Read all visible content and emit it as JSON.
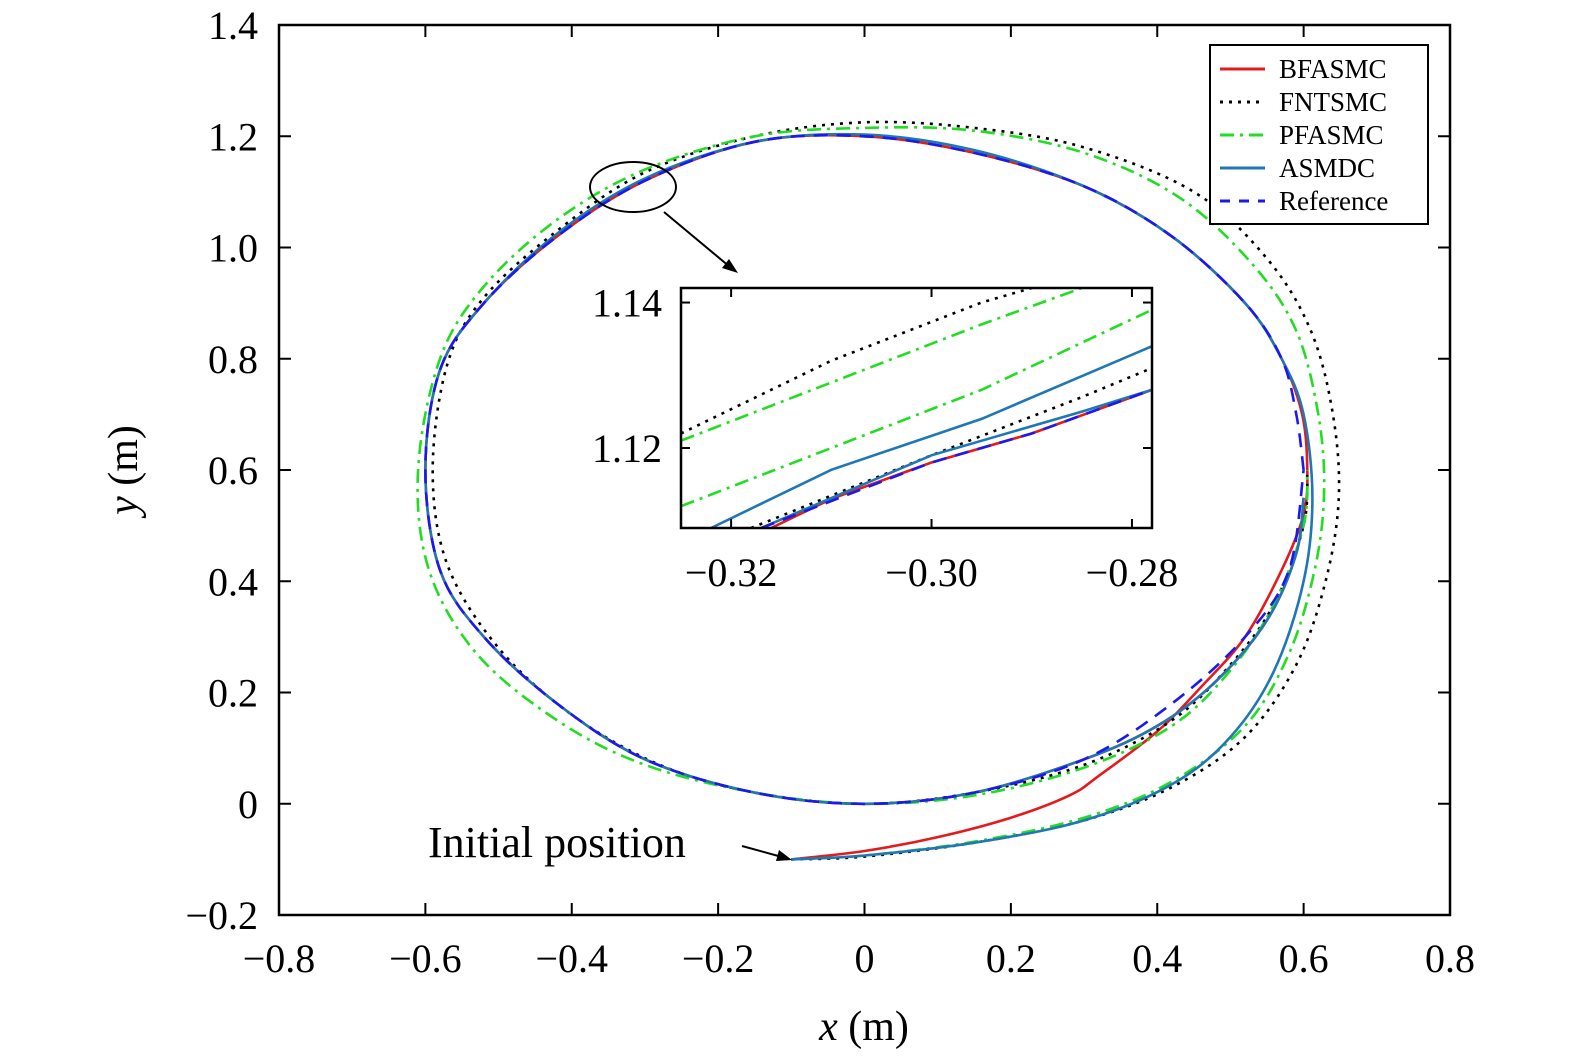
{
  "chart_data": {
    "type": "line",
    "xlabel": {
      "var": "x",
      "unit": " (m)"
    },
    "ylabel": {
      "var": "y",
      "unit": " (m)"
    },
    "xlim": [
      -0.8,
      0.8
    ],
    "ylim": [
      -0.2,
      1.4
    ],
    "xticks": [
      -0.8,
      -0.6,
      -0.4,
      -0.2,
      0,
      0.2,
      0.4,
      0.6,
      0.8
    ],
    "yticks": [
      -0.2,
      0,
      0.2,
      0.4,
      0.6,
      0.8,
      1.0,
      1.2,
      1.4
    ],
    "xtick_labels": [
      "−0.8",
      "−0.6",
      "−0.4",
      "−0.2",
      "0",
      "0.2",
      "0.4",
      "0.6",
      "0.8"
    ],
    "ytick_labels": [
      "−0.2",
      "0",
      "0.2",
      "0.4",
      "0.6",
      "0.8",
      "1.0",
      "1.2",
      "1.4"
    ],
    "legend_position": "top-right",
    "series": [
      {
        "name": "BFASMC",
        "color": "#e41a1c",
        "style": "solid",
        "points": [
          [
            -0.1,
            -0.1
          ],
          [
            0.0,
            -0.085
          ],
          [
            0.1,
            -0.06
          ],
          [
            0.2,
            -0.025
          ],
          [
            0.28,
            0.015
          ],
          [
            0.32,
            0.05
          ],
          [
            0.4,
            0.13
          ],
          [
            0.46,
            0.21
          ],
          [
            0.52,
            0.3
          ],
          [
            0.57,
            0.42
          ],
          [
            0.6,
            0.52
          ],
          [
            0.605,
            0.6
          ],
          [
            0.598,
            0.7
          ],
          [
            0.57,
            0.8
          ],
          [
            0.52,
            0.9
          ],
          [
            0.42,
            1.02
          ],
          [
            0.3,
            1.11
          ],
          [
            0.15,
            1.17
          ],
          [
            0.0,
            1.2
          ],
          [
            -0.15,
            1.19
          ],
          [
            -0.3,
            1.12
          ],
          [
            -0.42,
            1.02
          ],
          [
            -0.52,
            0.9
          ],
          [
            -0.58,
            0.78
          ],
          [
            -0.6,
            0.6
          ],
          [
            -0.58,
            0.42
          ],
          [
            -0.52,
            0.3
          ],
          [
            -0.42,
            0.18
          ],
          [
            -0.3,
            0.08
          ],
          [
            -0.15,
            0.02
          ],
          [
            0.0,
            0.0
          ],
          [
            0.15,
            0.02
          ],
          [
            0.3,
            0.08
          ],
          [
            0.4,
            0.14
          ],
          [
            0.48,
            0.22
          ],
          [
            0.55,
            0.33
          ],
          [
            0.59,
            0.45
          ],
          [
            0.6,
            0.55
          ]
        ]
      },
      {
        "name": "FNTSMC",
        "color": "#000000",
        "style": "dotted",
        "points": [
          [
            -0.1,
            -0.1
          ],
          [
            0.0,
            -0.095
          ],
          [
            0.15,
            -0.07
          ],
          [
            0.3,
            -0.03
          ],
          [
            0.42,
            0.03
          ],
          [
            0.52,
            0.12
          ],
          [
            0.59,
            0.25
          ],
          [
            0.63,
            0.4
          ],
          [
            0.648,
            0.55
          ],
          [
            0.64,
            0.7
          ],
          [
            0.61,
            0.85
          ],
          [
            0.55,
            0.98
          ],
          [
            0.45,
            1.1
          ],
          [
            0.3,
            1.18
          ],
          [
            0.15,
            1.215
          ],
          [
            0.0,
            1.225
          ],
          [
            -0.15,
            1.2
          ],
          [
            -0.3,
            1.135
          ],
          [
            -0.42,
            1.03
          ],
          [
            -0.52,
            0.91
          ],
          [
            -0.57,
            0.79
          ],
          [
            -0.59,
            0.6
          ],
          [
            -0.57,
            0.43
          ],
          [
            -0.5,
            0.28
          ],
          [
            -0.4,
            0.16
          ],
          [
            -0.28,
            0.07
          ],
          [
            -0.15,
            0.02
          ],
          [
            0.0,
            0.0
          ],
          [
            0.15,
            0.02
          ],
          [
            0.3,
            0.07
          ],
          [
            0.42,
            0.15
          ],
          [
            0.5,
            0.25
          ],
          [
            0.56,
            0.36
          ],
          [
            0.6,
            0.5
          ],
          [
            0.605,
            0.6
          ]
        ]
      },
      {
        "name": "PFASMC",
        "color": "#22dd22",
        "style": "dashdot",
        "points": [
          [
            -0.1,
            -0.1
          ],
          [
            0.0,
            -0.093
          ],
          [
            0.15,
            -0.068
          ],
          [
            0.3,
            -0.025
          ],
          [
            0.42,
            0.04
          ],
          [
            0.52,
            0.14
          ],
          [
            0.58,
            0.27
          ],
          [
            0.615,
            0.42
          ],
          [
            0.628,
            0.56
          ],
          [
            0.62,
            0.7
          ],
          [
            0.59,
            0.85
          ],
          [
            0.53,
            0.97
          ],
          [
            0.43,
            1.09
          ],
          [
            0.3,
            1.17
          ],
          [
            0.15,
            1.21
          ],
          [
            0.0,
            1.215
          ],
          [
            -0.15,
            1.2
          ],
          [
            -0.3,
            1.14
          ],
          [
            -0.42,
            1.05
          ],
          [
            -0.52,
            0.93
          ],
          [
            -0.58,
            0.8
          ],
          [
            -0.61,
            0.6
          ],
          [
            -0.595,
            0.42
          ],
          [
            -0.53,
            0.27
          ],
          [
            -0.42,
            0.15
          ],
          [
            -0.3,
            0.07
          ],
          [
            -0.15,
            0.02
          ],
          [
            0.0,
            0.0
          ],
          [
            0.15,
            0.015
          ],
          [
            0.3,
            0.065
          ],
          [
            0.42,
            0.14
          ],
          [
            0.5,
            0.24
          ],
          [
            0.56,
            0.36
          ],
          [
            0.6,
            0.5
          ],
          [
            0.605,
            0.6
          ]
        ]
      },
      {
        "name": "ASMDC",
        "color": "#1f77b4",
        "style": "solid",
        "points": [
          [
            -0.1,
            -0.1
          ],
          [
            0.0,
            -0.093
          ],
          [
            0.15,
            -0.07
          ],
          [
            0.3,
            -0.03
          ],
          [
            0.42,
            0.035
          ],
          [
            0.5,
            0.12
          ],
          [
            0.56,
            0.24
          ],
          [
            0.6,
            0.4
          ],
          [
            0.612,
            0.55
          ],
          [
            0.6,
            0.7
          ],
          [
            0.57,
            0.8
          ],
          [
            0.52,
            0.9
          ],
          [
            0.42,
            1.02
          ],
          [
            0.3,
            1.11
          ],
          [
            0.15,
            1.175
          ],
          [
            0.0,
            1.203
          ],
          [
            -0.15,
            1.19
          ],
          [
            -0.3,
            1.124
          ],
          [
            -0.42,
            1.025
          ],
          [
            -0.52,
            0.9
          ],
          [
            -0.58,
            0.78
          ],
          [
            -0.6,
            0.6
          ],
          [
            -0.58,
            0.42
          ],
          [
            -0.52,
            0.3
          ],
          [
            -0.42,
            0.18
          ],
          [
            -0.3,
            0.08
          ],
          [
            -0.15,
            0.02
          ],
          [
            0.0,
            0.0
          ],
          [
            0.15,
            0.02
          ],
          [
            0.3,
            0.08
          ],
          [
            0.4,
            0.14
          ],
          [
            0.48,
            0.22
          ],
          [
            0.55,
            0.33
          ],
          [
            0.59,
            0.45
          ],
          [
            0.6,
            0.55
          ]
        ]
      },
      {
        "name": "Reference",
        "color": "#1a1aee",
        "style": "dashed",
        "points": [
          [
            0.6,
            0.6
          ],
          [
            0.59,
            0.7
          ],
          [
            0.57,
            0.8
          ],
          [
            0.52,
            0.9
          ],
          [
            0.42,
            1.02
          ],
          [
            0.3,
            1.11
          ],
          [
            0.15,
            1.17
          ],
          [
            0.0,
            1.2
          ],
          [
            -0.15,
            1.19
          ],
          [
            -0.3,
            1.12
          ],
          [
            -0.42,
            1.02
          ],
          [
            -0.52,
            0.9
          ],
          [
            -0.58,
            0.78
          ],
          [
            -0.6,
            0.6
          ],
          [
            -0.58,
            0.42
          ],
          [
            -0.52,
            0.3
          ],
          [
            -0.42,
            0.18
          ],
          [
            -0.3,
            0.08
          ],
          [
            -0.15,
            0.02
          ],
          [
            0.0,
            0.0
          ],
          [
            0.15,
            0.02
          ],
          [
            0.3,
            0.08
          ],
          [
            0.42,
            0.18
          ],
          [
            0.52,
            0.3
          ],
          [
            0.58,
            0.42
          ],
          [
            0.6,
            0.6
          ]
        ]
      }
    ],
    "inset": {
      "xlim": [
        -0.325,
        -0.278
      ],
      "ylim": [
        1.109,
        1.142
      ],
      "xticks": [
        -0.32,
        -0.3,
        -0.28
      ],
      "yticks": [
        1.12,
        1.14
      ],
      "xtick_labels": [
        "−0.32",
        "−0.30",
        "−0.28"
      ],
      "ytick_labels": [
        "1.12",
        "1.14"
      ],
      "series": [
        {
          "name": "BFASMC",
          "points": [
            [
              -0.316,
              1.109
            ],
            [
              -0.31,
              1.113
            ],
            [
              -0.3,
              1.118
            ],
            [
              -0.29,
              1.122
            ],
            [
              -0.278,
              1.128
            ]
          ]
        },
        {
          "name": "FNTSMC",
          "points": [
            [
              -0.325,
              1.122
            ],
            [
              -0.31,
              1.132
            ],
            [
              -0.295,
              1.14
            ],
            [
              -0.29,
              1.142
            ]
          ]
        },
        {
          "name": "FNTSMC",
          "points": [
            [
              -0.318,
              1.109
            ],
            [
              -0.3,
              1.119
            ],
            [
              -0.285,
              1.127
            ],
            [
              -0.278,
              1.131
            ]
          ]
        },
        {
          "name": "PFASMC",
          "points": [
            [
              -0.325,
              1.121
            ],
            [
              -0.31,
              1.129
            ],
            [
              -0.295,
              1.137
            ],
            [
              -0.285,
              1.142
            ]
          ]
        },
        {
          "name": "PFASMC",
          "points": [
            [
              -0.325,
              1.112
            ],
            [
              -0.31,
              1.12
            ],
            [
              -0.295,
              1.128
            ],
            [
              -0.278,
              1.139
            ]
          ]
        },
        {
          "name": "ASMDC",
          "points": [
            [
              -0.322,
              1.109
            ],
            [
              -0.31,
              1.117
            ],
            [
              -0.295,
              1.124
            ],
            [
              -0.278,
              1.134
            ]
          ]
        },
        {
          "name": "ASMDC",
          "points": [
            [
              -0.317,
              1.109
            ],
            [
              -0.3,
              1.119
            ],
            [
              -0.285,
              1.125
            ],
            [
              -0.278,
              1.128
            ]
          ]
        },
        {
          "name": "Reference",
          "points": [
            [
              -0.317,
              1.109
            ],
            [
              -0.3,
              1.118
            ],
            [
              -0.29,
              1.122
            ],
            [
              -0.278,
              1.128
            ]
          ]
        }
      ]
    },
    "annotations": [
      {
        "text": "Initial position",
        "x": -0.1,
        "y": -0.1
      }
    ]
  }
}
